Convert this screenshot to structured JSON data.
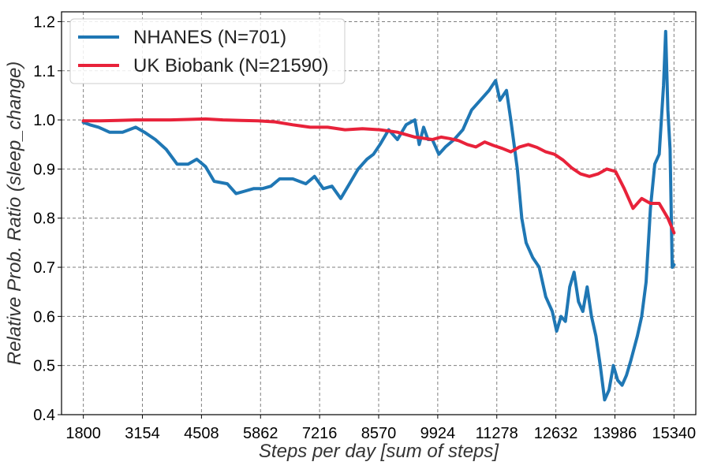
{
  "chart_data": {
    "type": "line",
    "xlabel": "Steps per day [sum of steps]",
    "ylabel": "Relative Prob. Ratio (sleep_change)",
    "xlim": [
      1300,
      15840
    ],
    "ylim": [
      0.4,
      1.22
    ],
    "xticks": [
      1800,
      3154,
      4508,
      5862,
      7216,
      8570,
      9924,
      11278,
      12632,
      13986,
      15340
    ],
    "xtick_labels": [
      "1800",
      "3154",
      "4508",
      "5862",
      "7216",
      "8570",
      "9924",
      "11278",
      "12632",
      "13986",
      "15340"
    ],
    "yticks": [
      0.4,
      0.5,
      0.6,
      0.7,
      0.8,
      0.9,
      1.0,
      1.1,
      1.2
    ],
    "ytick_labels": [
      "0.4",
      "0.5",
      "0.6",
      "0.7",
      "0.8",
      "0.9",
      "1.0",
      "1.1",
      "1.2"
    ],
    "grid": true,
    "legend_position": "top-left",
    "series": [
      {
        "name": "NHANES (N=701)",
        "color": "#1f77b4",
        "x": [
          1800,
          1950,
          2150,
          2400,
          2700,
          3000,
          3200,
          3450,
          3700,
          3950,
          4200,
          4400,
          4600,
          4800,
          5100,
          5300,
          5500,
          5700,
          5900,
          6100,
          6300,
          6600,
          6900,
          7100,
          7300,
          7500,
          7700,
          7900,
          8100,
          8300,
          8450,
          8600,
          8800,
          9000,
          9200,
          9400,
          9500,
          9600,
          9700,
          9800,
          9950,
          10100,
          10300,
          10500,
          10700,
          10900,
          11100,
          11250,
          11350,
          11500,
          11600,
          11750,
          11850,
          11950,
          12100,
          12250,
          12400,
          12550,
          12650,
          12750,
          12850,
          12950,
          13050,
          13150,
          13250,
          13350,
          13450,
          13550,
          13650,
          13750,
          13850,
          13950,
          14050,
          14150,
          14250,
          14350,
          14500,
          14600,
          14700,
          14800,
          14900,
          15000,
          15100,
          15150,
          15200,
          15250,
          15300,
          15340
        ],
        "y": [
          0.995,
          0.99,
          0.985,
          0.975,
          0.975,
          0.985,
          0.975,
          0.96,
          0.94,
          0.91,
          0.91,
          0.92,
          0.905,
          0.875,
          0.87,
          0.85,
          0.855,
          0.86,
          0.86,
          0.865,
          0.88,
          0.88,
          0.87,
          0.885,
          0.86,
          0.865,
          0.84,
          0.87,
          0.9,
          0.92,
          0.93,
          0.95,
          0.98,
          0.96,
          0.99,
          1.0,
          0.95,
          0.985,
          0.96,
          0.96,
          0.93,
          0.945,
          0.96,
          0.98,
          1.02,
          1.04,
          1.06,
          1.08,
          1.04,
          1.06,
          1.0,
          0.9,
          0.8,
          0.75,
          0.72,
          0.7,
          0.64,
          0.61,
          0.57,
          0.6,
          0.59,
          0.66,
          0.69,
          0.63,
          0.61,
          0.66,
          0.6,
          0.56,
          0.5,
          0.43,
          0.45,
          0.5,
          0.47,
          0.46,
          0.48,
          0.51,
          0.56,
          0.6,
          0.67,
          0.82,
          0.91,
          0.93,
          1.07,
          1.18,
          1.02,
          0.94,
          0.7,
          0.705
        ]
      },
      {
        "name": "UK Biobank (N=21590)",
        "color": "#e8223a",
        "x": [
          1800,
          2200,
          2600,
          3000,
          3400,
          3800,
          4200,
          4600,
          5000,
          5400,
          5800,
          6200,
          6600,
          7000,
          7400,
          7800,
          8200,
          8600,
          9000,
          9400,
          9800,
          10000,
          10200,
          10400,
          10600,
          10800,
          11000,
          11200,
          11400,
          11600,
          11800,
          12000,
          12200,
          12400,
          12600,
          12800,
          13000,
          13200,
          13400,
          13600,
          13800,
          14000,
          14200,
          14400,
          14600,
          14800,
          15000,
          15200,
          15340
        ],
        "y": [
          0.998,
          0.998,
          0.999,
          1.0,
          1.0,
          1.0,
          1.001,
          1.002,
          1.0,
          0.999,
          0.998,
          0.996,
          0.99,
          0.985,
          0.985,
          0.98,
          0.982,
          0.98,
          0.975,
          0.965,
          0.96,
          0.965,
          0.962,
          0.958,
          0.95,
          0.945,
          0.955,
          0.948,
          0.942,
          0.935,
          0.945,
          0.95,
          0.944,
          0.935,
          0.93,
          0.918,
          0.902,
          0.89,
          0.885,
          0.89,
          0.9,
          0.895,
          0.86,
          0.82,
          0.84,
          0.83,
          0.83,
          0.8,
          0.77
        ]
      }
    ]
  }
}
